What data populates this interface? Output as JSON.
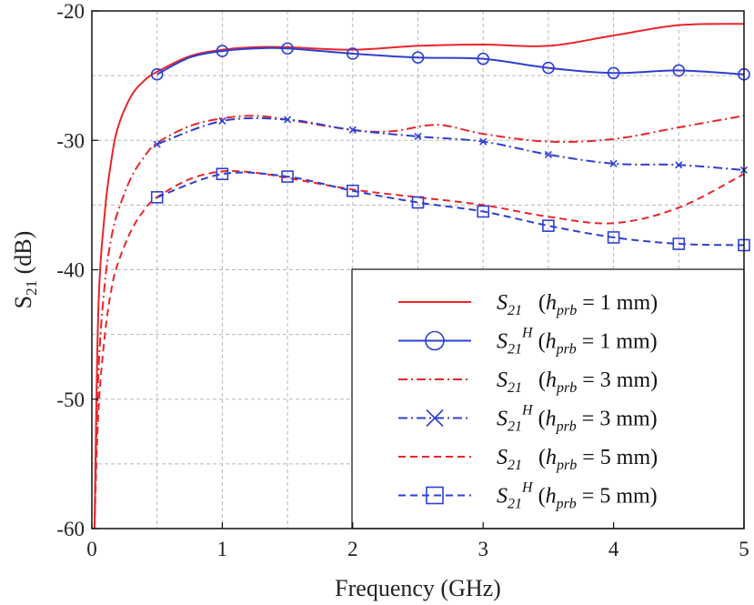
{
  "chart_data": {
    "type": "line",
    "xlabel": "Frequency (GHz)",
    "ylabel": "S",
    "ylabel_sub": "21",
    "ylabel_unit": " (dB)",
    "xlim": [
      0,
      5
    ],
    "ylim": [
      -60,
      -20
    ],
    "x_ticks": [
      0,
      1,
      2,
      3,
      4,
      5
    ],
    "y_ticks": [
      -60,
      -50,
      -40,
      -30,
      -20
    ],
    "x_tick_labels": [
      "0",
      "1",
      "2",
      "3",
      "4",
      "5"
    ],
    "y_tick_labels": [
      "-60",
      "-50",
      "-40",
      "-30",
      "-20"
    ],
    "grid": true,
    "legend_position": "bottom-right",
    "series": [
      {
        "name": "S21 (hprb = 1 mm)",
        "legend": {
          "sym": "S",
          "sub": "21",
          "sup": "",
          "h": "h",
          "hsub": "prb",
          "rest": " = 1 mm)"
        },
        "color": "#e8262b",
        "dash": "solid",
        "marker": "none",
        "x": [
          0.02,
          0.05,
          0.1,
          0.15,
          0.2,
          0.3,
          0.4,
          0.5,
          0.75,
          1.0,
          1.25,
          1.5,
          2.0,
          2.5,
          3.0,
          3.5,
          4.0,
          4.5,
          5.0
        ],
        "y": [
          -60,
          -43,
          -35.5,
          -31.5,
          -29,
          -26.6,
          -25.4,
          -24.7,
          -23.5,
          -23.0,
          -22.8,
          -22.8,
          -23.0,
          -22.7,
          -22.6,
          -22.7,
          -21.9,
          -21.1,
          -21.0
        ]
      },
      {
        "name": "S21H (hprb = 1 mm)",
        "legend": {
          "sym": "S",
          "sub": "21",
          "sup": "H",
          "h": "h",
          "hsub": "prb",
          "rest": " = 1 mm)"
        },
        "color": "#2f3fd0",
        "dash": "solid",
        "marker": "circle",
        "x": [
          0.5,
          0.75,
          1.0,
          1.25,
          1.5,
          2.0,
          2.5,
          3.0,
          3.5,
          4.0,
          4.5,
          5.0
        ],
        "y": [
          -24.9,
          -23.6,
          -23.1,
          -22.9,
          -22.9,
          -23.3,
          -23.6,
          -23.7,
          -24.4,
          -24.8,
          -24.6,
          -24.9
        ],
        "marker_x": [
          0.5,
          1.0,
          1.5,
          2.0,
          2.5,
          3.0,
          3.5,
          4.0,
          4.5,
          5.0
        ]
      },
      {
        "name": "S21 (hprb = 3 mm)",
        "legend": {
          "sym": "S",
          "sub": "21",
          "sup": "",
          "h": "h",
          "hsub": "prb",
          "rest": " = 3 mm)"
        },
        "color": "#e8262b",
        "dash": "dashdot",
        "marker": "none",
        "x": [
          0.02,
          0.05,
          0.1,
          0.15,
          0.2,
          0.3,
          0.4,
          0.5,
          0.75,
          1.0,
          1.25,
          1.5,
          2.0,
          2.3,
          2.65,
          3.0,
          3.5,
          4.0,
          4.5,
          5.0
        ],
        "y": [
          -60,
          -48,
          -41,
          -37.5,
          -35.5,
          -32.9,
          -31.3,
          -30.2,
          -28.9,
          -28.3,
          -28.1,
          -28.4,
          -29.2,
          -29.3,
          -28.8,
          -29.5,
          -30.1,
          -29.9,
          -29.0,
          -28.1
        ]
      },
      {
        "name": "S21H (hprb = 3 mm)",
        "legend": {
          "sym": "S",
          "sub": "21",
          "sup": "H",
          "h": "h",
          "hsub": "prb",
          "rest": " = 3 mm)"
        },
        "color": "#2f3fd0",
        "dash": "dashdot",
        "marker": "x",
        "x": [
          0.5,
          1.0,
          1.5,
          2.0,
          2.5,
          3.0,
          3.5,
          4.0,
          4.5,
          5.0
        ],
        "y": [
          -30.3,
          -28.5,
          -28.4,
          -29.2,
          -29.7,
          -30.1,
          -31.1,
          -31.8,
          -31.9,
          -32.3
        ],
        "marker_x": [
          0.5,
          1.0,
          1.5,
          2.0,
          2.5,
          3.0,
          3.5,
          4.0,
          4.5,
          5.0
        ]
      },
      {
        "name": "S21 (hprb = 5 mm)",
        "legend": {
          "sym": "S",
          "sub": "21",
          "sup": "",
          "h": "h",
          "hsub": "prb",
          "rest": " = 5 mm)"
        },
        "color": "#e8262b",
        "dash": "dashed",
        "marker": "none",
        "x": [
          0.02,
          0.05,
          0.1,
          0.15,
          0.2,
          0.3,
          0.4,
          0.5,
          0.75,
          1.0,
          1.25,
          1.5,
          2.0,
          2.5,
          3.0,
          3.5,
          4.0,
          4.5,
          5.0
        ],
        "y": [
          -60,
          -51,
          -45,
          -41.5,
          -39.5,
          -37,
          -35.4,
          -34.4,
          -33.0,
          -32.4,
          -32.5,
          -32.9,
          -33.8,
          -34.4,
          -35.0,
          -35.9,
          -36.4,
          -35.2,
          -32.6
        ]
      },
      {
        "name": "S21H (hprb = 5 mm)",
        "legend": {
          "sym": "S",
          "sub": "21",
          "sup": "H",
          "h": "h",
          "hsub": "prb",
          "rest": " = 5 mm)"
        },
        "color": "#2f3fd0",
        "dash": "dashed",
        "marker": "square",
        "x": [
          0.5,
          1.0,
          1.5,
          2.0,
          2.5,
          3.0,
          3.5,
          4.0,
          4.5,
          5.0
        ],
        "y": [
          -34.4,
          -32.6,
          -32.8,
          -33.9,
          -34.8,
          -35.5,
          -36.6,
          -37.5,
          -38.0,
          -38.1
        ],
        "marker_x": [
          0.5,
          1.0,
          1.5,
          2.0,
          2.5,
          3.0,
          3.5,
          4.0,
          4.5,
          5.0
        ]
      }
    ]
  }
}
